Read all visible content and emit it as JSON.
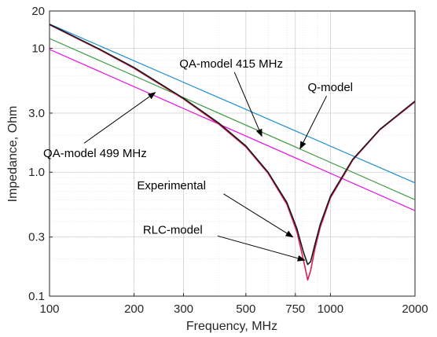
{
  "chart_data": {
    "type": "line",
    "xlabel": "Frequency, MHz",
    "ylabel": "Impedance, Ohm",
    "x_scale": "log",
    "y_scale": "log",
    "xlim": [
      100,
      2000
    ],
    "ylim": [
      0.1,
      20
    ],
    "grid": true,
    "x_ticks": [
      {
        "value": 100,
        "label": "100"
      },
      {
        "value": 200,
        "label": "200"
      },
      {
        "value": 300,
        "label": "300"
      },
      {
        "value": 500,
        "label": "500"
      },
      {
        "value": 750,
        "label": "750"
      },
      {
        "value": 1000,
        "label": "1000"
      },
      {
        "value": 2000,
        "label": "2000"
      }
    ],
    "y_ticks": [
      {
        "value": 0.1,
        "label": "0.1"
      },
      {
        "value": 0.3,
        "label": "0.3"
      },
      {
        "value": 1,
        "label": "1.0"
      },
      {
        "value": 3,
        "label": "3.0"
      },
      {
        "value": 10,
        "label": "10"
      },
      {
        "value": 20,
        "label": "20"
      }
    ],
    "series": [
      {
        "key": "q-model",
        "name": "",
        "color": "#1f8fd0",
        "x": [
          100,
          2000
        ],
        "y": [
          15.7,
          0.82
        ]
      },
      {
        "key": "qa-model-415",
        "name": "",
        "color": "#3d9a3d",
        "x": [
          100,
          2000
        ],
        "y": [
          12.0,
          0.6
        ]
      },
      {
        "key": "qa-model-499",
        "name": "",
        "color": "#e60fe6",
        "x": [
          100,
          2000
        ],
        "y": [
          9.8,
          0.49
        ]
      },
      {
        "key": "rlc-model",
        "name": "",
        "color": "#dc1e50",
        "x": [
          100,
          150,
          200,
          300,
          400,
          500,
          600,
          700,
          760,
          800,
          830,
          850,
          880,
          920,
          1000,
          1200,
          1500,
          2000
        ],
        "y": [
          15.5,
          9.8,
          6.9,
          3.9,
          2.45,
          1.6,
          0.98,
          0.55,
          0.33,
          0.2,
          0.135,
          0.16,
          0.24,
          0.36,
          0.62,
          1.25,
          2.2,
          3.7
        ]
      },
      {
        "key": "experimental",
        "name": "",
        "color": "#1a1a1a",
        "x": [
          100,
          150,
          200,
          300,
          400,
          500,
          600,
          700,
          760,
          800,
          830,
          850,
          880,
          920,
          1000,
          1200,
          1500,
          2000
        ],
        "y": [
          15.6,
          9.9,
          7.0,
          3.95,
          2.5,
          1.63,
          1.0,
          0.57,
          0.35,
          0.23,
          0.18,
          0.19,
          0.26,
          0.38,
          0.64,
          1.27,
          2.22,
          3.75
        ]
      }
    ],
    "annotations": [
      {
        "key": "ann-qa-415",
        "text": "QA-model 415 MHz",
        "x": 290,
        "y": 7.0,
        "ax": 570,
        "ay": 1.95,
        "anchor": "start"
      },
      {
        "key": "ann-q-model",
        "text": "Q-model",
        "x": 830,
        "y": 4.5,
        "ax": 780,
        "ay": 1.55,
        "anchor": "start"
      },
      {
        "key": "ann-qa-499",
        "text": "QA-model 499 MHz",
        "x": 95,
        "y": 1.32,
        "ax": 238,
        "ay": 4.4,
        "anchor": "start"
      },
      {
        "key": "ann-experimental",
        "text": "Experimental",
        "x": 205,
        "y": 0.73,
        "ax": 735,
        "ay": 0.3,
        "anchor": "start"
      },
      {
        "key": "ann-rlc-model",
        "text": "RLC-model",
        "x": 215,
        "y": 0.32,
        "ax": 810,
        "ay": 0.195,
        "anchor": "start"
      }
    ]
  }
}
